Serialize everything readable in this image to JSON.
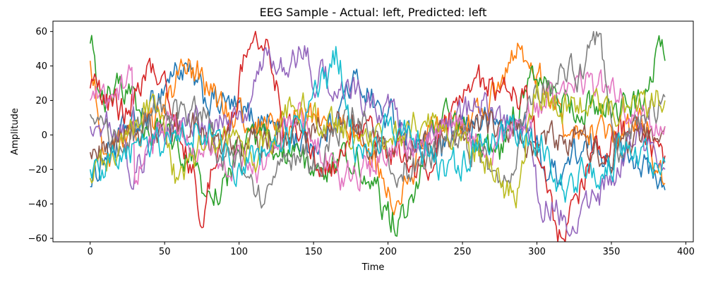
{
  "chart_data": {
    "type": "line",
    "title": "EEG Sample - Actual: left, Predicted: left",
    "xlabel": "Time",
    "ylabel": "Amplitude",
    "xlim": [
      -25,
      405
    ],
    "ylim": [
      -62,
      66
    ],
    "xticks": [
      0,
      50,
      100,
      150,
      200,
      250,
      300,
      350,
      400
    ],
    "yticks": [
      -60,
      -40,
      -20,
      0,
      20,
      40,
      60
    ],
    "n_samples": 387,
    "grid": false,
    "legend": "none",
    "colors": [
      "#1f77b4",
      "#ff7f0e",
      "#2ca02c",
      "#d62728",
      "#9467bd",
      "#8c564b",
      "#e377c2",
      "#7f7f7f",
      "#bcbd22",
      "#17becf"
    ],
    "series": [
      {
        "color": "#1f77b4",
        "keypoints": [
          [
            0,
            -30
          ],
          [
            10,
            -10
          ],
          [
            30,
            5
          ],
          [
            60,
            38
          ],
          [
            80,
            20
          ],
          [
            110,
            10
          ],
          [
            150,
            -5
          ],
          [
            180,
            30
          ],
          [
            200,
            10
          ],
          [
            230,
            -10
          ],
          [
            260,
            8
          ],
          [
            290,
            5
          ],
          [
            310,
            -22
          ],
          [
            330,
            -10
          ],
          [
            360,
            -8
          ],
          [
            387,
            -32
          ]
        ]
      },
      {
        "color": "#ff7f0e",
        "keypoints": [
          [
            0,
            43
          ],
          [
            10,
            -10
          ],
          [
            30,
            0
          ],
          [
            70,
            38
          ],
          [
            90,
            15
          ],
          [
            120,
            5
          ],
          [
            150,
            10
          ],
          [
            180,
            0
          ],
          [
            205,
            -40
          ],
          [
            230,
            0
          ],
          [
            260,
            10
          ],
          [
            290,
            48
          ],
          [
            320,
            5
          ],
          [
            350,
            0
          ],
          [
            370,
            10
          ],
          [
            387,
            -28
          ]
        ]
      },
      {
        "color": "#2ca02c",
        "keypoints": [
          [
            0,
            53
          ],
          [
            8,
            20
          ],
          [
            20,
            28
          ],
          [
            40,
            5
          ],
          [
            70,
            -10
          ],
          [
            80,
            -38
          ],
          [
            110,
            0
          ],
          [
            150,
            -20
          ],
          [
            175,
            -10
          ],
          [
            205,
            -48
          ],
          [
            240,
            10
          ],
          [
            275,
            -12
          ],
          [
            295,
            30
          ],
          [
            330,
            15
          ],
          [
            370,
            20
          ],
          [
            385,
            49
          ],
          [
            387,
            43
          ]
        ]
      },
      {
        "color": "#d62728",
        "keypoints": [
          [
            0,
            27
          ],
          [
            20,
            15
          ],
          [
            45,
            38
          ],
          [
            70,
            -20
          ],
          [
            73,
            -46
          ],
          [
            90,
            5
          ],
          [
            110,
            51
          ],
          [
            120,
            50
          ],
          [
            130,
            10
          ],
          [
            160,
            -20
          ],
          [
            190,
            0
          ],
          [
            220,
            -20
          ],
          [
            260,
            30
          ],
          [
            290,
            20
          ],
          [
            315,
            -55
          ],
          [
            340,
            -10
          ],
          [
            360,
            5
          ],
          [
            387,
            -12
          ]
        ]
      },
      {
        "color": "#9467bd",
        "keypoints": [
          [
            0,
            5
          ],
          [
            20,
            5
          ],
          [
            28,
            -20
          ],
          [
            50,
            0
          ],
          [
            70,
            10
          ],
          [
            100,
            5
          ],
          [
            120,
            45
          ],
          [
            135,
            40
          ],
          [
            142,
            50
          ],
          [
            150,
            35
          ],
          [
            170,
            25
          ],
          [
            200,
            15
          ],
          [
            220,
            -5
          ],
          [
            260,
            15
          ],
          [
            290,
            0
          ],
          [
            305,
            -40
          ],
          [
            320,
            -50
          ],
          [
            340,
            -35
          ],
          [
            370,
            0
          ],
          [
            387,
            -20
          ]
        ]
      },
      {
        "color": "#8c564b",
        "keypoints": [
          [
            0,
            -10
          ],
          [
            30,
            0
          ],
          [
            60,
            5
          ],
          [
            100,
            -5
          ],
          [
            130,
            0
          ],
          [
            170,
            5
          ],
          [
            200,
            -10
          ],
          [
            240,
            0
          ],
          [
            280,
            5
          ],
          [
            300,
            -5
          ],
          [
            320,
            0
          ],
          [
            350,
            -10
          ],
          [
            387,
            5
          ]
        ]
      },
      {
        "color": "#e377c2",
        "keypoints": [
          [
            0,
            20
          ],
          [
            15,
            15
          ],
          [
            28,
            38
          ],
          [
            30,
            -25
          ],
          [
            50,
            5
          ],
          [
            80,
            -10
          ],
          [
            110,
            -20
          ],
          [
            140,
            10
          ],
          [
            170,
            -25
          ],
          [
            210,
            -10
          ],
          [
            240,
            5
          ],
          [
            270,
            -10
          ],
          [
            300,
            15
          ],
          [
            330,
            30
          ],
          [
            350,
            25
          ],
          [
            370,
            10
          ],
          [
            387,
            5
          ]
        ]
      },
      {
        "color": "#7f7f7f",
        "keypoints": [
          [
            0,
            12
          ],
          [
            20,
            -5
          ],
          [
            50,
            15
          ],
          [
            75,
            10
          ],
          [
            90,
            -15
          ],
          [
            115,
            -35
          ],
          [
            130,
            -10
          ],
          [
            150,
            -15
          ],
          [
            180,
            10
          ],
          [
            210,
            -20
          ],
          [
            245,
            -5
          ],
          [
            280,
            -20
          ],
          [
            300,
            30
          ],
          [
            325,
            35
          ],
          [
            340,
            52
          ],
          [
            355,
            -5
          ],
          [
            370,
            10
          ],
          [
            387,
            22
          ]
        ]
      },
      {
        "color": "#bcbd22",
        "keypoints": [
          [
            0,
            -25
          ],
          [
            20,
            -5
          ],
          [
            40,
            20
          ],
          [
            60,
            -25
          ],
          [
            80,
            0
          ],
          [
            110,
            -10
          ],
          [
            140,
            15
          ],
          [
            170,
            5
          ],
          [
            195,
            -5
          ],
          [
            230,
            10
          ],
          [
            260,
            -10
          ],
          [
            285,
            -35
          ],
          [
            300,
            25
          ],
          [
            320,
            15
          ],
          [
            350,
            15
          ],
          [
            387,
            20
          ]
        ]
      },
      {
        "color": "#17becf",
        "keypoints": [
          [
            0,
            -20
          ],
          [
            20,
            -10
          ],
          [
            45,
            -5
          ],
          [
            75,
            5
          ],
          [
            100,
            -20
          ],
          [
            130,
            -5
          ],
          [
            160,
            30
          ],
          [
            165,
            45
          ],
          [
            180,
            -10
          ],
          [
            210,
            5
          ],
          [
            240,
            -20
          ],
          [
            270,
            0
          ],
          [
            300,
            0
          ],
          [
            320,
            -30
          ],
          [
            340,
            -20
          ],
          [
            360,
            -10
          ],
          [
            387,
            -16
          ]
        ]
      }
    ]
  }
}
